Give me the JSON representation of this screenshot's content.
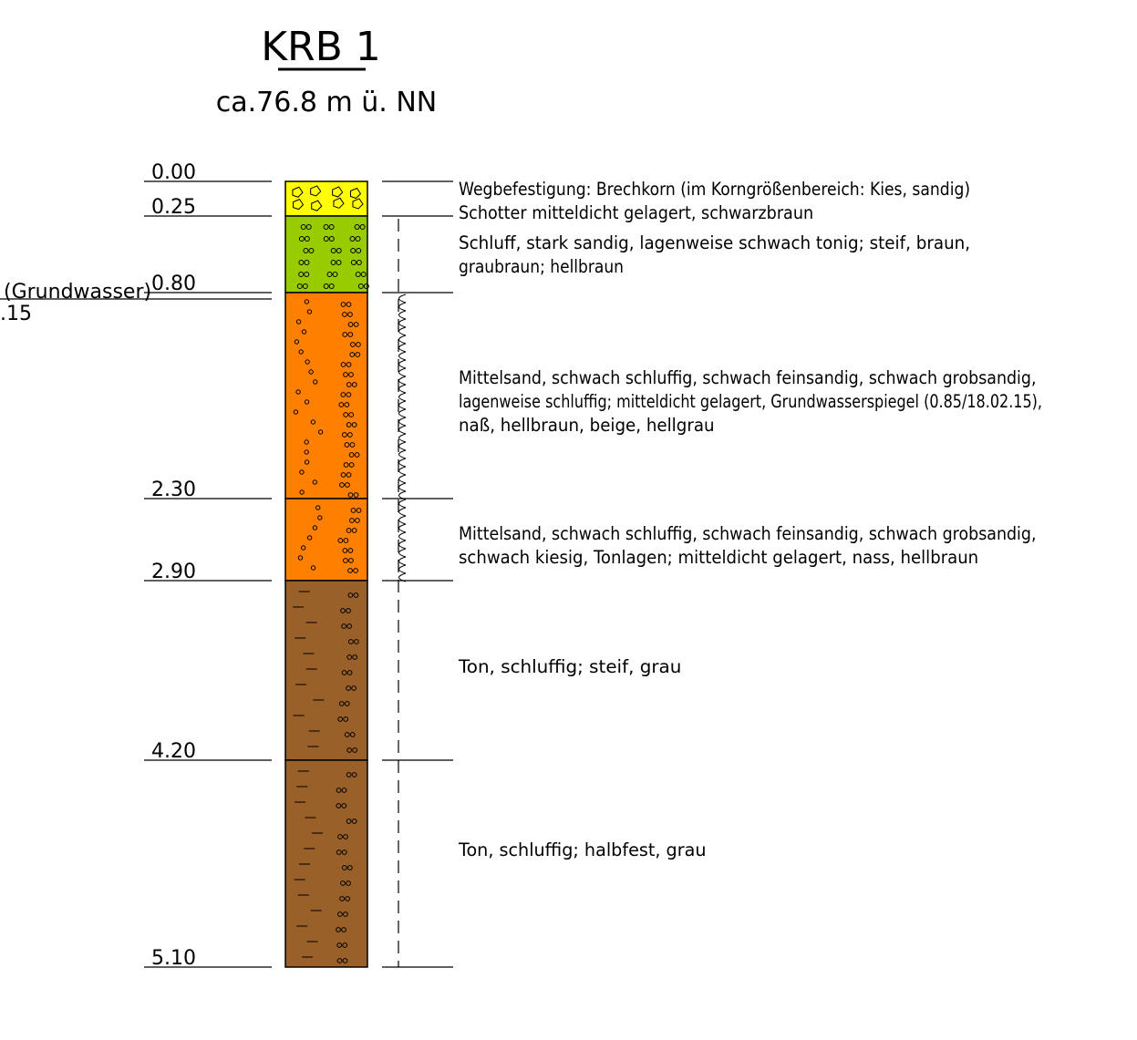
{
  "header": {
    "boring_id": "KRB 1",
    "elevation": "ca.76.8  m  ü.  NN"
  },
  "groundwater": {
    "label": "(Grundwasser)",
    "date_fragment": ".15"
  },
  "depth_labels": [
    "0.00",
    "0.25",
    "0.80",
    "2.30",
    "2.90",
    "4.20",
    "5.10"
  ],
  "layers": [
    {
      "from": 0.0,
      "to": 0.25,
      "color": "#ffff00",
      "pattern": "gravel",
      "description": [
        "Wegbefestigung: Brechkorn (im Korngrößenbereich: Kies, sandig)"
      ]
    },
    {
      "from": 0.25,
      "to": 0.8,
      "color": "#99cc00",
      "pattern": "silt",
      "description": [
        "Schotter mitteldicht gelagert, schwarzbraun"
      ],
      "description2": [
        "Schluff, stark sandig, lagenweise schwach tonig; steif, braun,",
        "graubraun; hellbraun"
      ]
    },
    {
      "from": 0.8,
      "to": 2.3,
      "color": "#ff8000",
      "pattern": "sand",
      "description": [
        "Mittelsand, schwach schluffig, schwach feinsandig, schwach grobsandig,",
        "lagenweise schluffig; mitteldicht gelagert, Grundwasserspiegel (0.85/18.02.15),",
        "naß, hellbraun, beige, hellgrau"
      ]
    },
    {
      "from": 2.3,
      "to": 2.9,
      "color": "#ff8000",
      "pattern": "sand",
      "description": [
        "Mittelsand, schwach schluffig, schwach feinsandig, schwach grobsandig,",
        "schwach kiesig, Tonlagen; mitteldicht gelagert, nass, hellbraun"
      ]
    },
    {
      "from": 2.9,
      "to": 4.2,
      "color": "#99602a",
      "pattern": "clay",
      "description": [
        "Ton, schluffig; steif, grau"
      ]
    },
    {
      "from": 4.2,
      "to": 5.1,
      "color": "#99602a",
      "pattern": "clay",
      "description": [
        "Ton, schluffig; halbfest, grau"
      ]
    }
  ],
  "colors": {
    "gravel": "#ffff00",
    "silt": "#99cc00",
    "sand": "#ff8000",
    "clay": "#99602a",
    "line": "#000000"
  }
}
